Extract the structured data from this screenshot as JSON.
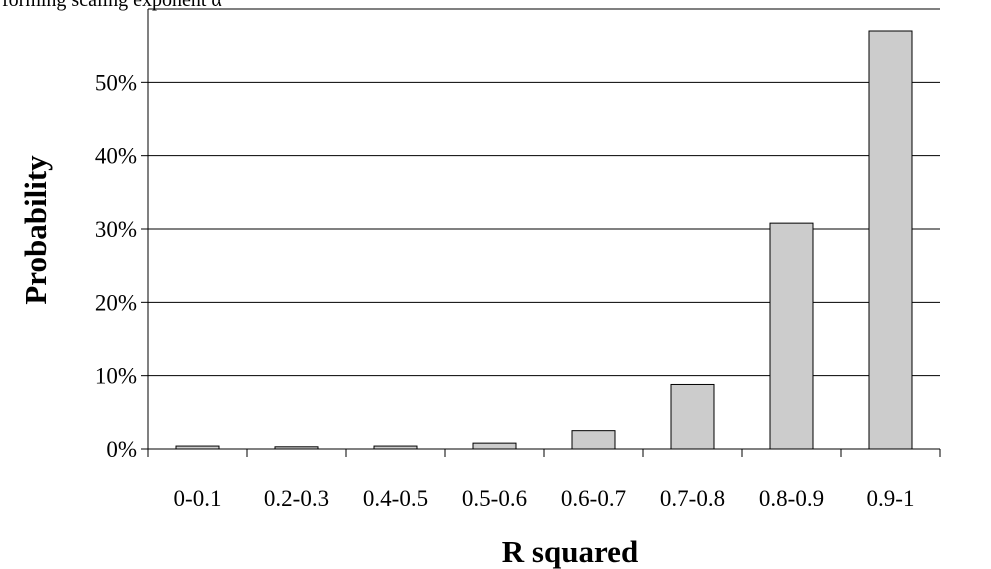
{
  "caption_fragment": "forming scaling exponent α",
  "chart_data": {
    "type": "bar",
    "title": "",
    "xlabel": "R squared",
    "ylabel": "Probability",
    "categories": [
      "0-0.1",
      "0.2-0.3",
      "0.4-0.5",
      "0.5-0.6",
      "0.6-0.7",
      "0.7-0.8",
      "0.8-0.9",
      "0.9-1"
    ],
    "values": [
      0.4,
      0.3,
      0.4,
      0.8,
      2.5,
      8.8,
      30.8,
      57.0
    ],
    "ylim": [
      0,
      60
    ],
    "yticks": [
      0,
      10,
      20,
      30,
      40,
      50
    ],
    "ytick_labels": [
      "0%",
      "10%",
      "20%",
      "30%",
      "40%",
      "50%"
    ],
    "grid": true,
    "bar_color": "#cccccc",
    "bar_stroke": "#000000"
  }
}
